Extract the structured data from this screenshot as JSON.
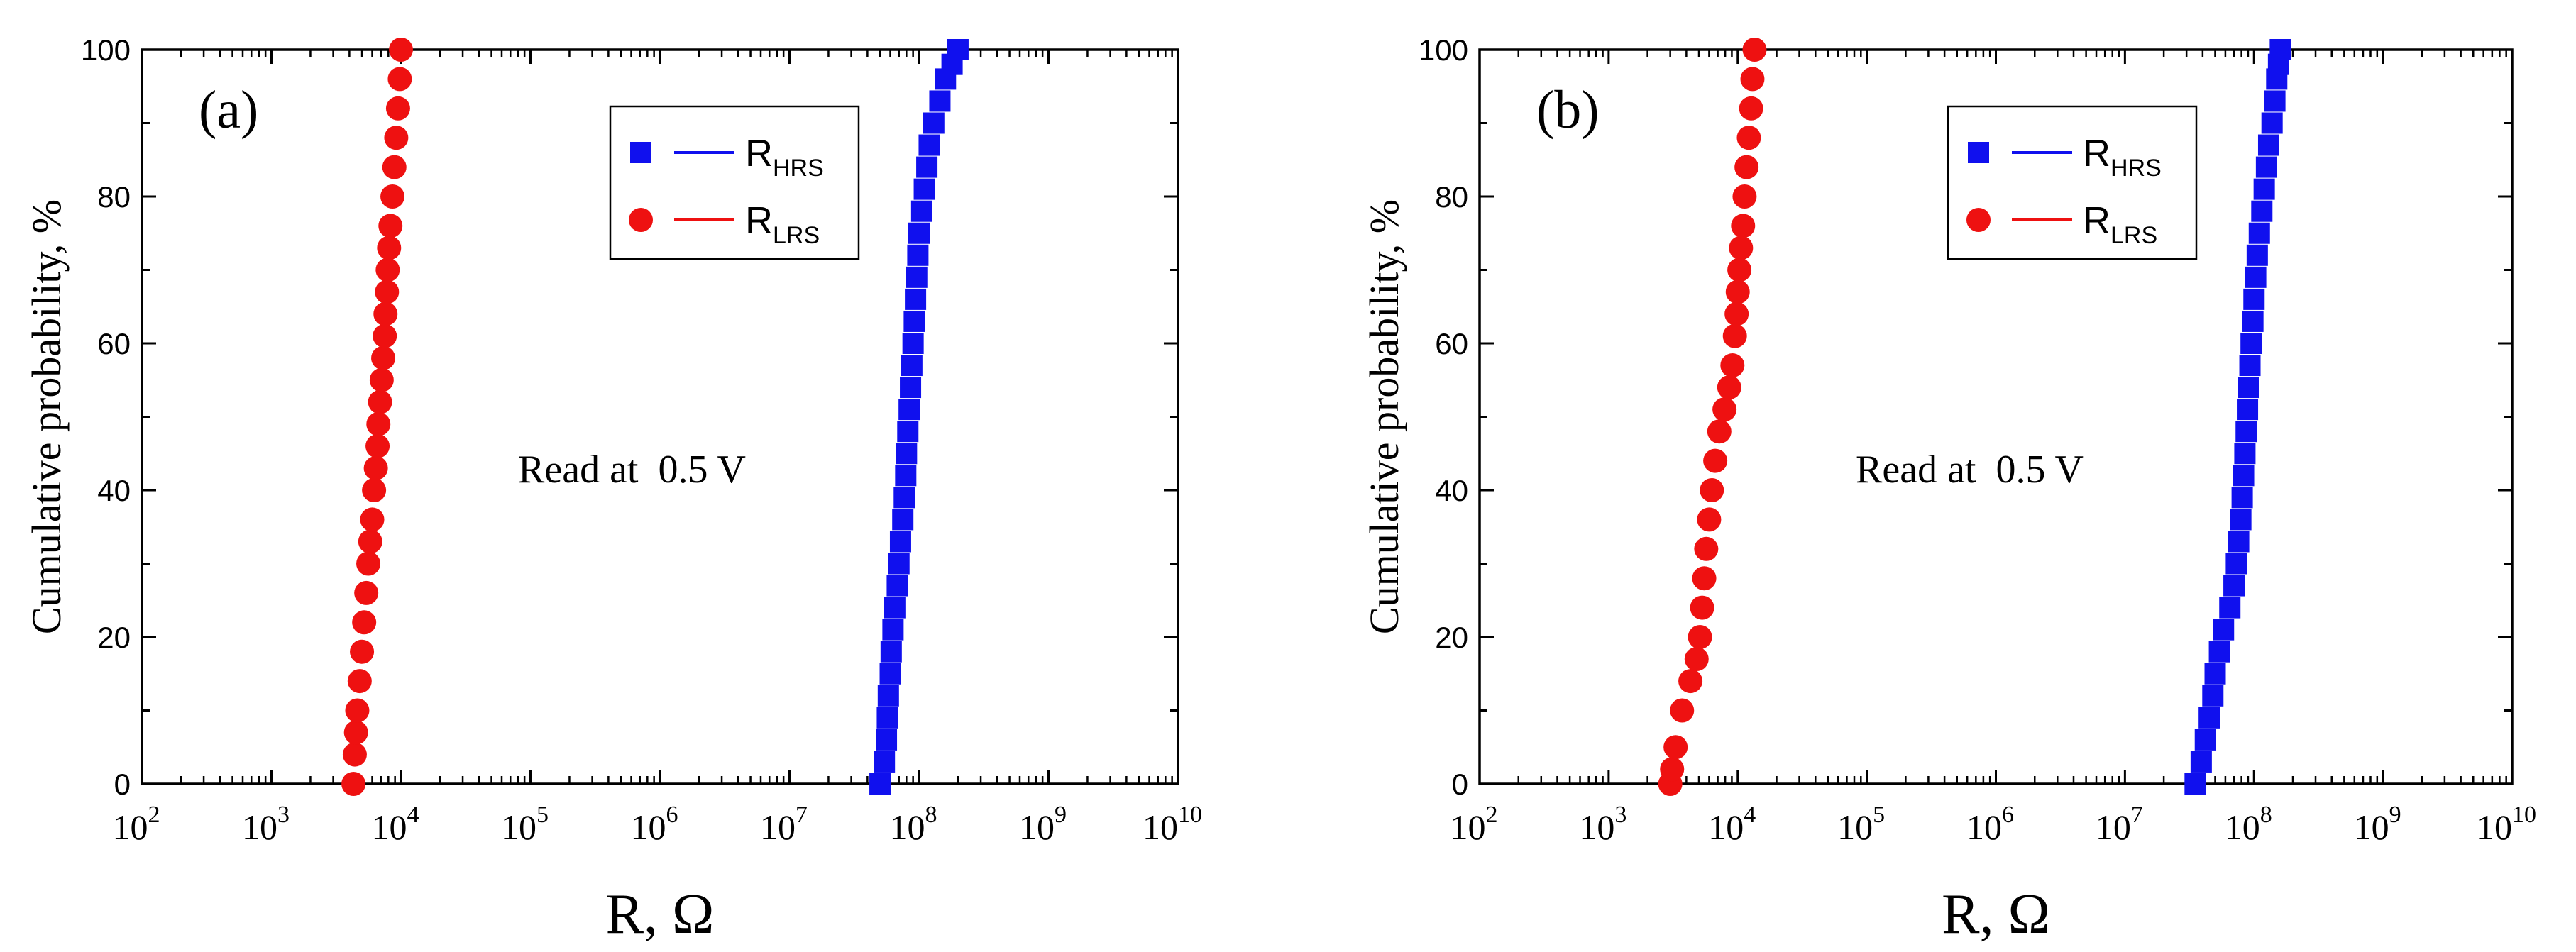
{
  "chart_data": [
    {
      "type": "scatter",
      "panel_label": "(a)",
      "xlabel": "R, Ω",
      "ylabel": "Cumulative probability, %",
      "x_scale": "log",
      "xlim_exp": [
        2,
        10
      ],
      "ylim": [
        0,
        100
      ],
      "x_tick_exponents": [
        2,
        3,
        4,
        5,
        6,
        7,
        8,
        9,
        10
      ],
      "y_ticks": [
        0,
        20,
        40,
        60,
        80,
        100
      ],
      "annotation": "Read at  0.5 V",
      "legend_position": "top-center",
      "series": [
        {
          "name": "R",
          "subscript": "HRS",
          "color": "#1010ee",
          "marker": "square",
          "points": [
            [
              50000000.0,
              0
            ],
            [
              54000000.0,
              3
            ],
            [
              56000000.0,
              6
            ],
            [
              57000000.0,
              9
            ],
            [
              58000000.0,
              12
            ],
            [
              60000000.0,
              15
            ],
            [
              61000000.0,
              18
            ],
            [
              63000000.0,
              21
            ],
            [
              65000000.0,
              24
            ],
            [
              68000000.0,
              27
            ],
            [
              70000000.0,
              30
            ],
            [
              72000000.0,
              33
            ],
            [
              75000000.0,
              36
            ],
            [
              77000000.0,
              39
            ],
            [
              79000000.0,
              42
            ],
            [
              80000000.0,
              45
            ],
            [
              82000000.0,
              48
            ],
            [
              84000000.0,
              51
            ],
            [
              86000000.0,
              54
            ],
            [
              88000000.0,
              57
            ],
            [
              90000000.0,
              60
            ],
            [
              92000000.0,
              63
            ],
            [
              94000000.0,
              66
            ],
            [
              96000000.0,
              69
            ],
            [
              98000000.0,
              72
            ],
            [
              100000000.0,
              75
            ],
            [
              105000000.0,
              78
            ],
            [
              110000000.0,
              81
            ],
            [
              115000000.0,
              84
            ],
            [
              120000000.0,
              87
            ],
            [
              130000000.0,
              90
            ],
            [
              145000000.0,
              93
            ],
            [
              160000000.0,
              96
            ],
            [
              180000000.0,
              98
            ],
            [
              200000000.0,
              100
            ]
          ]
        },
        {
          "name": "R",
          "subscript": "LRS",
          "color": "#ee1111",
          "marker": "circle",
          "points": [
            [
              4300.0,
              0
            ],
            [
              4400.0,
              4
            ],
            [
              4500.0,
              7
            ],
            [
              4600.0,
              10
            ],
            [
              4800.0,
              14
            ],
            [
              5000.0,
              18
            ],
            [
              5200.0,
              22
            ],
            [
              5400.0,
              26
            ],
            [
              5600.0,
              30
            ],
            [
              5800.0,
              33
            ],
            [
              6000.0,
              36
            ],
            [
              6200.0,
              40
            ],
            [
              6400.0,
              43
            ],
            [
              6600.0,
              46
            ],
            [
              6700.0,
              49
            ],
            [
              6900.0,
              52
            ],
            [
              7100.0,
              55
            ],
            [
              7300.0,
              58
            ],
            [
              7500.0,
              61
            ],
            [
              7600.0,
              64
            ],
            [
              7800.0,
              67
            ],
            [
              7900.0,
              70
            ],
            [
              8100.0,
              73
            ],
            [
              8300.0,
              76
            ],
            [
              8600.0,
              80
            ],
            [
              8900.0,
              84
            ],
            [
              9200.0,
              88
            ],
            [
              9500.0,
              92
            ],
            [
              9800.0,
              96
            ],
            [
              10000.0,
              100
            ]
          ]
        }
      ]
    },
    {
      "type": "scatter",
      "panel_label": "(b)",
      "xlabel": "R, Ω",
      "ylabel": "Cumulative probability, %",
      "x_scale": "log",
      "xlim_exp": [
        2,
        10
      ],
      "ylim": [
        0,
        100
      ],
      "x_tick_exponents": [
        2,
        3,
        4,
        5,
        6,
        7,
        8,
        9,
        10
      ],
      "y_ticks": [
        0,
        20,
        40,
        60,
        80,
        100
      ],
      "annotation": "Read at  0.5 V",
      "legend_position": "top-center",
      "series": [
        {
          "name": "R",
          "subscript": "HRS",
          "color": "#1010ee",
          "marker": "square",
          "points": [
            [
              35000000.0,
              0
            ],
            [
              39000000.0,
              3
            ],
            [
              42000000.0,
              6
            ],
            [
              45000000.0,
              9
            ],
            [
              48000000.0,
              12
            ],
            [
              50000000.0,
              15
            ],
            [
              54000000.0,
              18
            ],
            [
              58000000.0,
              21
            ],
            [
              65000000.0,
              24
            ],
            [
              70000000.0,
              27
            ],
            [
              73000000.0,
              30
            ],
            [
              76000000.0,
              33
            ],
            [
              79000000.0,
              36
            ],
            [
              81000000.0,
              39
            ],
            [
              83000000.0,
              42
            ],
            [
              85000000.0,
              45
            ],
            [
              87000000.0,
              48
            ],
            [
              89000000.0,
              51
            ],
            [
              91000000.0,
              54
            ],
            [
              93000000.0,
              57
            ],
            [
              95000000.0,
              60
            ],
            [
              98000000.0,
              63
            ],
            [
              100000000.0,
              66
            ],
            [
              103000000.0,
              69
            ],
            [
              106000000.0,
              72
            ],
            [
              110000000.0,
              75
            ],
            [
              115000000.0,
              78
            ],
            [
              120000000.0,
              81
            ],
            [
              125000000.0,
              84
            ],
            [
              130000000.0,
              87
            ],
            [
              138000000.0,
              90
            ],
            [
              145000000.0,
              93
            ],
            [
              150000000.0,
              96
            ],
            [
              155000000.0,
              98
            ],
            [
              160000000.0,
              100
            ]
          ]
        },
        {
          "name": "R",
          "subscript": "LRS",
          "color": "#ee1111",
          "marker": "circle",
          "points": [
            [
              3000.0,
              0
            ],
            [
              3100.0,
              2
            ],
            [
              3300.0,
              5
            ],
            [
              3700.0,
              10
            ],
            [
              4300.0,
              14
            ],
            [
              4800.0,
              17
            ],
            [
              5100.0,
              20
            ],
            [
              5300.0,
              24
            ],
            [
              5500.0,
              28
            ],
            [
              5700.0,
              32
            ],
            [
              6000.0,
              36
            ],
            [
              6300.0,
              40
            ],
            [
              6700.0,
              44
            ],
            [
              7200.0,
              48
            ],
            [
              7900.0,
              51
            ],
            [
              8600.0,
              54
            ],
            [
              9100.0,
              57
            ],
            [
              9500.0,
              61
            ],
            [
              9800.0,
              64
            ],
            [
              10000.0,
              67
            ],
            [
              10300.0,
              70
            ],
            [
              10600.0,
              73
            ],
            [
              11000.0,
              76
            ],
            [
              11300.0,
              80
            ],
            [
              11700.0,
              84
            ],
            [
              12200.0,
              88
            ],
            [
              12700.0,
              92
            ],
            [
              13000.0,
              96
            ],
            [
              13500.0,
              100
            ]
          ]
        }
      ]
    }
  ]
}
